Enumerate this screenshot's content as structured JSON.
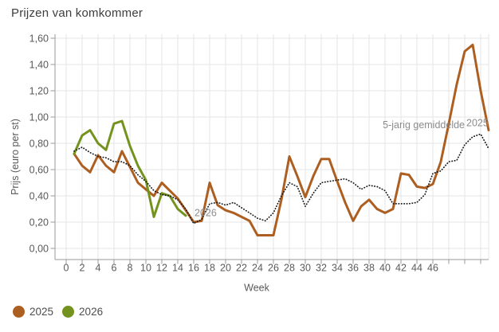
{
  "title": "Prijzen van komkommer",
  "chart_data": {
    "type": "line",
    "title": "Prijzen van komkommer",
    "xlabel": "Week",
    "ylabel": "Prijs (euro per st)",
    "x_domain": [
      0,
      53
    ],
    "ylim": [
      0,
      1.6
    ],
    "grid": true,
    "legend_position": "bottom-left",
    "x_tick_step": 2,
    "x_labeled_ticks": [
      0,
      2,
      4,
      6,
      8,
      10,
      12,
      14,
      16,
      18,
      20,
      22,
      24,
      26,
      28,
      30,
      32,
      34,
      36,
      38,
      40,
      42,
      44,
      46
    ],
    "y_ticks": [
      {
        "value": 0.0,
        "label": "0,00"
      },
      {
        "value": 0.2,
        "label": "0,20"
      },
      {
        "value": 0.4,
        "label": "0,40"
      },
      {
        "value": 0.6,
        "label": "0,60"
      },
      {
        "value": 0.8,
        "label": "0,80"
      },
      {
        "value": 1.0,
        "label": "1,00"
      },
      {
        "value": 1.2,
        "label": "1,20"
      },
      {
        "value": 1.4,
        "label": "1,40"
      },
      {
        "value": 1.6,
        "label": "1,60"
      }
    ],
    "series": [
      {
        "name": "2025",
        "color": "#ad5f21",
        "style": "solid",
        "x_start_week": 1,
        "values": [
          0.72,
          0.63,
          0.58,
          0.71,
          0.63,
          0.58,
          0.74,
          0.62,
          0.5,
          0.45,
          0.4,
          0.5,
          0.44,
          0.38,
          0.29,
          0.2,
          0.21,
          0.5,
          0.33,
          0.29,
          0.27,
          0.24,
          0.21,
          0.1,
          0.1,
          0.1,
          0.37,
          0.7,
          0.55,
          0.39,
          0.55,
          0.68,
          0.68,
          0.51,
          0.35,
          0.21,
          0.32,
          0.37,
          0.3,
          0.27,
          0.3,
          0.57,
          0.56,
          0.47,
          0.46,
          0.49,
          0.66,
          0.95,
          1.25,
          1.5,
          1.55,
          1.2,
          0.9
        ]
      },
      {
        "name": "2026",
        "color": "#74921e",
        "style": "solid",
        "x_start_week": 1,
        "values": [
          0.72,
          0.86,
          0.9,
          0.8,
          0.75,
          0.95,
          0.97,
          0.78,
          0.63,
          0.52,
          0.24,
          0.42,
          0.4,
          0.3,
          0.25
        ]
      },
      {
        "name": "5-jarig gemiddelde",
        "color": "#1a1a1a",
        "style": "dotted",
        "x_start_week": 1,
        "values": [
          0.74,
          0.77,
          0.73,
          0.7,
          0.69,
          0.66,
          0.66,
          0.63,
          0.56,
          0.51,
          0.44,
          0.41,
          0.4,
          0.37,
          0.3,
          0.19,
          0.22,
          0.34,
          0.35,
          0.33,
          0.35,
          0.31,
          0.27,
          0.23,
          0.21,
          0.27,
          0.4,
          0.5,
          0.47,
          0.32,
          0.42,
          0.5,
          0.51,
          0.52,
          0.53,
          0.5,
          0.45,
          0.48,
          0.47,
          0.44,
          0.34,
          0.34,
          0.34,
          0.35,
          0.41,
          0.57,
          0.59,
          0.66,
          0.67,
          0.79,
          0.85,
          0.87,
          0.76
        ]
      }
    ],
    "annotations": [
      {
        "text": "2026",
        "week": 16.1,
        "value": 0.27,
        "anchor": "start"
      },
      {
        "text": "5-jarig gemiddelde",
        "week": 50.0,
        "value": 0.94,
        "anchor": "end"
      },
      {
        "text": "2025",
        "week": 50.2,
        "value": 0.955,
        "anchor": "start"
      }
    ]
  },
  "legend": {
    "items": [
      {
        "label": "2025",
        "color": "#ad5f21"
      },
      {
        "label": "2026",
        "color": "#74921e"
      }
    ]
  },
  "colors": {
    "series_2025": "#ad5f21",
    "series_2026": "#74921e",
    "average_line": "#1a1a1a",
    "gridline": "#e4e4e4",
    "axis": "#9a9a9a",
    "tick_label": "#595959",
    "annotation": "#8c8c8c",
    "title": "#3d3d3d",
    "background": "#ffffff"
  }
}
